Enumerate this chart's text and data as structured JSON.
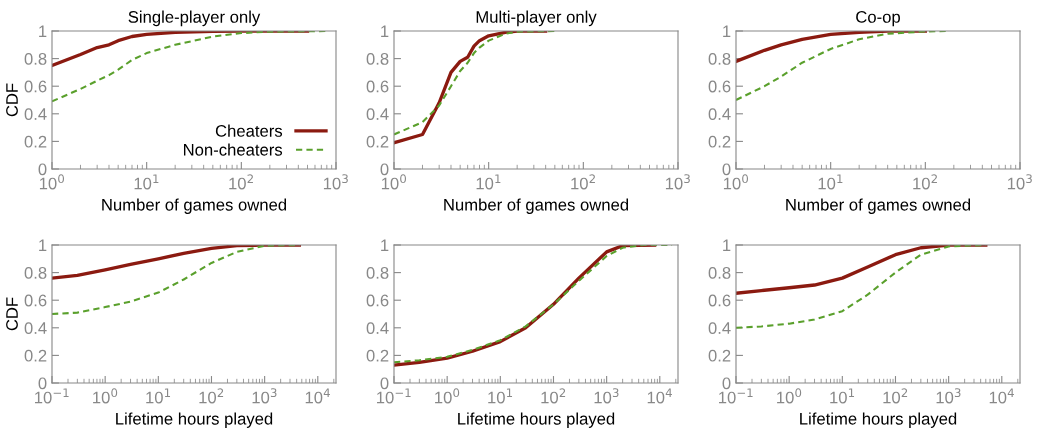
{
  "chart_data": [
    {
      "type": "line",
      "title": "Single-player only",
      "xlabel": "Number of games owned",
      "ylabel": "CDF",
      "log": "x",
      "legend": "bottom right",
      "grid": false,
      "xlim": [
        1,
        1000
      ],
      "xticks": [
        {
          "value": 1,
          "label": "10$^{0}$"
        },
        {
          "value": 10,
          "label": "10$^{1}$"
        },
        {
          "value": 100,
          "label": "10$^{2}$"
        },
        {
          "value": 1000,
          "label": "10$^{3}$"
        }
      ],
      "ylim": [
        0,
        1
      ],
      "yticks": [
        0,
        0.2,
        0.4,
        0.6,
        0.8,
        1
      ],
      "series": [
        {
          "name": "Cheaters",
          "color": "#8b1a10",
          "line_style": "solid",
          "x": [
            1,
            2,
            3,
            4,
            5,
            7,
            10,
            20,
            50,
            100,
            500
          ],
          "values": [
            0.75,
            0.83,
            0.88,
            0.9,
            0.93,
            0.96,
            0.975,
            0.99,
            0.997,
            1.0,
            1.0
          ]
        },
        {
          "name": "Non-cheaters",
          "color": "#5aa02c",
          "line_style": "dashed",
          "x": [
            1,
            2,
            3,
            4,
            5,
            7,
            10,
            20,
            50,
            100,
            200,
            800
          ],
          "values": [
            0.49,
            0.58,
            0.64,
            0.68,
            0.72,
            0.79,
            0.84,
            0.9,
            0.96,
            0.985,
            0.995,
            1.0
          ]
        }
      ]
    },
    {
      "type": "line",
      "title": "Multi-player only",
      "xlabel": "Number of games owned",
      "log": "x",
      "grid": false,
      "xlim": [
        1,
        1000
      ],
      "xticks": [
        {
          "value": 1,
          "label": "10$^{0}$"
        },
        {
          "value": 10,
          "label": "10$^{1}$"
        },
        {
          "value": 100,
          "label": "10$^{2}$"
        },
        {
          "value": 1000,
          "label": "10$^{3}$"
        }
      ],
      "ylim": [
        0,
        1
      ],
      "yticks": [
        0,
        0.2,
        0.4,
        0.6,
        0.8,
        1
      ],
      "series": [
        {
          "color": "#8b1a10",
          "line_style": "solid",
          "x": [
            1,
            2,
            3,
            4,
            5,
            6,
            7,
            8,
            10,
            15,
            20,
            40
          ],
          "values": [
            0.19,
            0.25,
            0.48,
            0.7,
            0.78,
            0.81,
            0.89,
            0.93,
            0.965,
            0.99,
            1.0,
            1.0
          ]
        },
        {
          "color": "#5aa02c",
          "line_style": "dashed",
          "x": [
            1,
            2,
            3,
            4,
            5,
            6,
            7,
            8,
            10,
            15,
            20,
            50
          ],
          "values": [
            0.25,
            0.34,
            0.46,
            0.6,
            0.71,
            0.77,
            0.84,
            0.88,
            0.93,
            0.98,
            0.995,
            1.0
          ]
        }
      ]
    },
    {
      "type": "line",
      "title": "Co-op",
      "xlabel": "Number of games owned",
      "log": "x",
      "grid": false,
      "xlim": [
        1,
        1000
      ],
      "xticks": [
        {
          "value": 1,
          "label": "10$^{0}$"
        },
        {
          "value": 10,
          "label": "10$^{1}$"
        },
        {
          "value": 100,
          "label": "10$^{2}$"
        },
        {
          "value": 1000,
          "label": "10$^{3}$"
        }
      ],
      "ylim": [
        0,
        1
      ],
      "yticks": [
        0,
        0.2,
        0.4,
        0.6,
        0.8,
        1
      ],
      "series": [
        {
          "color": "#8b1a10",
          "line_style": "solid",
          "x": [
            1,
            2,
            3,
            5,
            10,
            20,
            40,
            100
          ],
          "values": [
            0.78,
            0.86,
            0.9,
            0.94,
            0.975,
            0.99,
            1.0,
            1.0
          ]
        },
        {
          "color": "#5aa02c",
          "line_style": "dashed",
          "x": [
            1,
            2,
            3,
            5,
            10,
            20,
            40,
            100,
            170
          ],
          "values": [
            0.5,
            0.6,
            0.67,
            0.77,
            0.87,
            0.94,
            0.98,
            0.997,
            1.0
          ]
        }
      ]
    },
    {
      "type": "line",
      "xlabel": "Lifetime hours played",
      "ylabel": "CDF",
      "log": "x",
      "grid": false,
      "xlim": [
        0.1,
        22000
      ],
      "xticks": [
        {
          "value": 0.1,
          "label": "10$^{−1}$"
        },
        {
          "value": 1,
          "label": "10$^{0}$"
        },
        {
          "value": 10,
          "label": "10$^{1}$"
        },
        {
          "value": 100,
          "label": "10$^{2}$"
        },
        {
          "value": 1000,
          "label": "10$^{3}$"
        },
        {
          "value": 10000,
          "label": "10$^{4}$"
        }
      ],
      "ylim": [
        0,
        1
      ],
      "yticks": [
        0,
        0.2,
        0.4,
        0.6,
        0.8,
        1
      ],
      "series": [
        {
          "color": "#8b1a10",
          "line_style": "solid",
          "x": [
            0.1,
            0.3,
            1,
            3,
            10,
            30,
            100,
            300,
            1000,
            4500
          ],
          "values": [
            0.76,
            0.78,
            0.82,
            0.86,
            0.9,
            0.94,
            0.975,
            0.995,
            1.0,
            1.0
          ]
        },
        {
          "color": "#5aa02c",
          "line_style": "dashed",
          "x": [
            0.1,
            0.3,
            1,
            3,
            10,
            30,
            100,
            300,
            1000,
            4500
          ],
          "values": [
            0.5,
            0.51,
            0.55,
            0.59,
            0.655,
            0.75,
            0.87,
            0.95,
            0.995,
            1.0
          ]
        }
      ]
    },
    {
      "type": "line",
      "xlabel": "Lifetime hours played",
      "log": "x",
      "grid": false,
      "xlim": [
        0.1,
        22000
      ],
      "xticks": [
        {
          "value": 0.1,
          "label": "10$^{−1}$"
        },
        {
          "value": 1,
          "label": "10$^{0}$"
        },
        {
          "value": 10,
          "label": "10$^{1}$"
        },
        {
          "value": 100,
          "label": "10$^{2}$"
        },
        {
          "value": 1000,
          "label": "10$^{3}$"
        },
        {
          "value": 10000,
          "label": "10$^{4}$"
        }
      ],
      "ylim": [
        0,
        1
      ],
      "yticks": [
        0,
        0.2,
        0.4,
        0.6,
        0.8,
        1
      ],
      "series": [
        {
          "color": "#8b1a10",
          "line_style": "solid",
          "x": [
            0.1,
            0.3,
            1,
            3,
            10,
            30,
            100,
            300,
            1000,
            2000,
            8000
          ],
          "values": [
            0.13,
            0.15,
            0.18,
            0.23,
            0.3,
            0.4,
            0.57,
            0.76,
            0.95,
            0.995,
            1.0
          ]
        },
        {
          "color": "#5aa02c",
          "line_style": "dashed",
          "x": [
            0.1,
            0.3,
            1,
            3,
            10,
            30,
            100,
            300,
            1000,
            2000,
            5000,
            17000
          ],
          "values": [
            0.15,
            0.165,
            0.19,
            0.24,
            0.31,
            0.41,
            0.57,
            0.74,
            0.92,
            0.98,
            1.0,
            1.0
          ]
        }
      ]
    },
    {
      "type": "line",
      "xlabel": "Lifetime hours played",
      "log": "x",
      "grid": false,
      "xlim": [
        0.1,
        22000
      ],
      "xticks": [
        {
          "value": 0.1,
          "label": "10$^{−1}$"
        },
        {
          "value": 1,
          "label": "10$^{0}$"
        },
        {
          "value": 10,
          "label": "10$^{1}$"
        },
        {
          "value": 100,
          "label": "10$^{2}$"
        },
        {
          "value": 1000,
          "label": "10$^{3}$"
        },
        {
          "value": 10000,
          "label": "10$^{4}$"
        }
      ],
      "ylim": [
        0,
        1
      ],
      "yticks": [
        0,
        0.2,
        0.4,
        0.6,
        0.8,
        1
      ],
      "series": [
        {
          "color": "#8b1a10",
          "line_style": "solid",
          "x": [
            0.1,
            0.3,
            1,
            3,
            10,
            30,
            100,
            300,
            1000,
            5000
          ],
          "values": [
            0.65,
            0.67,
            0.69,
            0.71,
            0.76,
            0.84,
            0.93,
            0.98,
            1.0,
            1.0
          ]
        },
        {
          "color": "#5aa02c",
          "line_style": "dashed",
          "x": [
            0.1,
            0.3,
            1,
            3,
            10,
            30,
            100,
            300,
            1000,
            5000
          ],
          "values": [
            0.4,
            0.41,
            0.43,
            0.46,
            0.52,
            0.64,
            0.8,
            0.93,
            0.99,
            1.0
          ]
        }
      ]
    }
  ]
}
